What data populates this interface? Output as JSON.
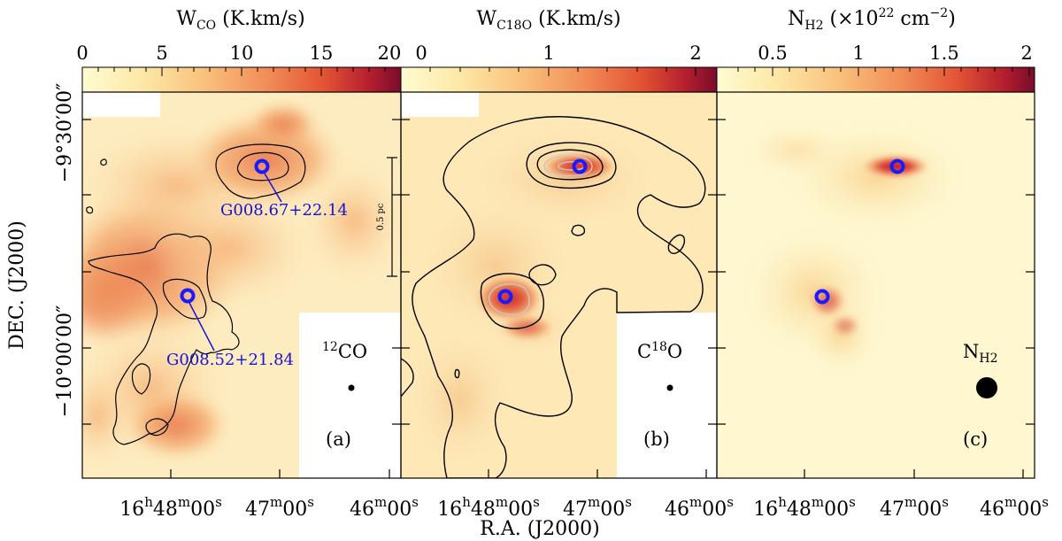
{
  "colors": {
    "colormap": [
      "#fffbd2",
      "#fde9a8",
      "#f9c27d",
      "#f28d57",
      "#e25334",
      "#b51f2e",
      "#7a0c2c"
    ],
    "marker": "#1a1aff",
    "label": "#1414d8",
    "contour_dark": "#000000",
    "contour_light": "#c8c8c8",
    "background": "#fef7cf"
  },
  "colorbars": [
    {
      "title": "W",
      "sub": "CO",
      "unit": " (K.km/s)",
      "ticks": [
        "0",
        "5",
        "10",
        "15",
        "20"
      ]
    },
    {
      "title": "W",
      "sub": "C18O",
      "unit": " (K.km/s)",
      "ticks": [
        "0",
        "1",
        "2"
      ]
    },
    {
      "title": "N",
      "sub": "H2",
      "unit_pre": " (×10",
      "unit_sup": "22",
      "unit_mid": " cm",
      "unit_sup2": "−2",
      "unit_post": ")",
      "ticks": [
        "0.5",
        "1",
        "1.5",
        "2"
      ]
    }
  ],
  "axes": {
    "ylabel": "DEC. (J2000)",
    "xlabel": "R.A. (J2000)",
    "yticks": [
      "−9°30′00″",
      "−10°00′00″"
    ],
    "xticks": [
      {
        "h": "16",
        "m": "48",
        "s": "00"
      },
      {
        "m": "47",
        "s": "00"
      },
      {
        "m": "46",
        "s": "00"
      }
    ]
  },
  "panels": [
    {
      "letter": "(a)",
      "line": "12",
      "line_rest": "CO"
    },
    {
      "letter": "(b)",
      "line": "C",
      "line_sup": "18",
      "line_rest": "O"
    },
    {
      "letter": "(c)",
      "line": "N",
      "line_sub": "H2"
    }
  ],
  "sources": [
    "G008.67+22.14",
    "G008.52+21.84"
  ],
  "scalebar": "0.5 pc"
}
